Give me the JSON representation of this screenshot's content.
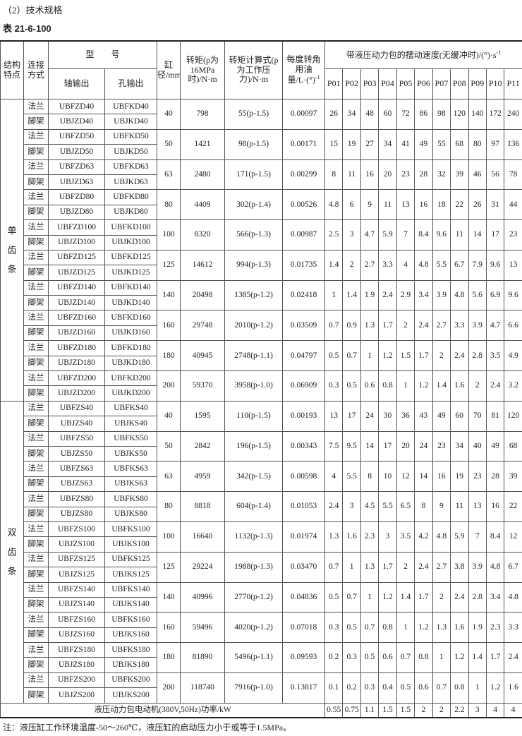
{
  "section_title": "（2）技术规格",
  "table_number": "表 21-6-100",
  "headers": {
    "structure": "结构特点",
    "connection": "连接方式",
    "model": "型　　号",
    "shaft_output": "轴输出",
    "hole_output": "孔输出",
    "bore": "缸径/mm",
    "torque": "转矩(p为16MPa时)/N·m",
    "torque_formula": "转矩计算式(p为工作压力)/N·m",
    "oil_per_degree": "每度转角用油量/L·(°)",
    "oil_unit_sup": "-1",
    "swing_speed": "带液压动力包的摆动速度(无缓冲时)/(°)·s",
    "swing_speed_sup": "-1",
    "packs": [
      "P01",
      "P02",
      "P03",
      "P04",
      "P05",
      "P06",
      "P07",
      "P08",
      "P09",
      "P10",
      "P11"
    ]
  },
  "connection_types": {
    "flange": "法兰",
    "foot": "脚架"
  },
  "sections": [
    {
      "label": "单齿条",
      "groups": [
        {
          "bore": "40",
          "torque": "798",
          "formula": "55(p-1.5)",
          "oil": "0.00097",
          "models": [
            [
              "UBFZD40",
              "UBFKD40"
            ],
            [
              "UBJZD40",
              "UBJKD40"
            ]
          ],
          "speeds": [
            "26",
            "34",
            "48",
            "60",
            "72",
            "86",
            "98",
            "120",
            "140",
            "172",
            "240"
          ]
        },
        {
          "bore": "50",
          "torque": "1421",
          "formula": "98(p-1.5)",
          "oil": "0.00171",
          "models": [
            [
              "UBFZD50",
              "UBFKD50"
            ],
            [
              "UBJZD50",
              "UBJKD50"
            ]
          ],
          "speeds": [
            "15",
            "19",
            "27",
            "34",
            "41",
            "49",
            "55",
            "68",
            "80",
            "97",
            "136"
          ]
        },
        {
          "bore": "63",
          "torque": "2480",
          "formula": "171(p-1.5)",
          "oil": "0.00299",
          "models": [
            [
              "UBFZD63",
              "UBFKD63"
            ],
            [
              "UBJZD63",
              "UBJKD63"
            ]
          ],
          "speeds": [
            "8",
            "11",
            "16",
            "20",
            "23",
            "28",
            "32",
            "39",
            "46",
            "56",
            "78"
          ]
        },
        {
          "bore": "80",
          "torque": "4409",
          "formula": "302(p-1.4)",
          "oil": "0.00526",
          "models": [
            [
              "UBFZD80",
              "UBFKD80"
            ],
            [
              "UBJZD80",
              "UBJKD80"
            ]
          ],
          "speeds": [
            "4.8",
            "6",
            "9",
            "11",
            "13",
            "16",
            "18",
            "22",
            "26",
            "31",
            "44"
          ]
        },
        {
          "bore": "100",
          "torque": "8320",
          "formula": "566(p-1.3)",
          "oil": "0.00987",
          "models": [
            [
              "UBFZD100",
              "UBFKD100"
            ],
            [
              "UBJZD100",
              "UBJKD100"
            ]
          ],
          "speeds": [
            "2.5",
            "3",
            "4.7",
            "5.9",
            "7",
            "8.4",
            "9.6",
            "11",
            "14",
            "17",
            "23"
          ]
        },
        {
          "bore": "125",
          "torque": "14612",
          "formula": "994(p-1.3)",
          "oil": "0.01735",
          "models": [
            [
              "UBFZD125",
              "UBFKD125"
            ],
            [
              "UBJZD125",
              "UBJKD125"
            ]
          ],
          "speeds": [
            "1.4",
            "2",
            "2.7",
            "3.3",
            "4",
            "4.8",
            "5.5",
            "6.7",
            "7.9",
            "9.6",
            "13"
          ]
        },
        {
          "bore": "140",
          "torque": "20498",
          "formula": "1385(p-1.2)",
          "oil": "0.02418",
          "models": [
            [
              "UBFZD140",
              "UBFKD140"
            ],
            [
              "UBJZD140",
              "UBJKD140"
            ]
          ],
          "speeds": [
            "1",
            "1.4",
            "1.9",
            "2.4",
            "2.9",
            "3.4",
            "3.9",
            "4.8",
            "5.6",
            "6.9",
            "9.6"
          ]
        },
        {
          "bore": "160",
          "torque": "29748",
          "formula": "2010(p-1.2)",
          "oil": "0.03509",
          "models": [
            [
              "UBFZD160",
              "UBFKD160"
            ],
            [
              "UBJZD160",
              "UBJKD160"
            ]
          ],
          "speeds": [
            "0.7",
            "0.9",
            "1.3",
            "1.7",
            "2",
            "2.4",
            "2.7",
            "3.3",
            "3.9",
            "4.7",
            "6.6"
          ]
        },
        {
          "bore": "180",
          "torque": "40945",
          "formula": "2748(p-1.1)",
          "oil": "0.04797",
          "models": [
            [
              "UBFZD180",
              "UBFKD180"
            ],
            [
              "UBJZD180",
              "UBJKD180"
            ]
          ],
          "speeds": [
            "0.5",
            "0.7",
            "1",
            "1.2",
            "1.5",
            "1.7",
            "2",
            "2.4",
            "2.8",
            "3.5",
            "4.9"
          ]
        },
        {
          "bore": "200",
          "torque": "59370",
          "formula": "3958(p-1.0)",
          "oil": "0.06909",
          "models": [
            [
              "UBFZD200",
              "UBFKD200"
            ],
            [
              "UBJZD200",
              "UBJKD200"
            ]
          ],
          "speeds": [
            "0.3",
            "0.5",
            "0.6",
            "0.8",
            "1",
            "1.2",
            "1.4",
            "1.6",
            "2",
            "2.4",
            "3.2"
          ]
        }
      ]
    },
    {
      "label": "双齿条",
      "groups": [
        {
          "bore": "40",
          "torque": "1595",
          "formula": "110(p-1.5)",
          "oil": "0.00193",
          "models": [
            [
              "UBFZS40",
              "UBFKS40"
            ],
            [
              "UBJZS40",
              "UBJKS40"
            ]
          ],
          "speeds": [
            "13",
            "17",
            "24",
            "30",
            "36",
            "43",
            "49",
            "60",
            "70",
            "81",
            "120"
          ]
        },
        {
          "bore": "50",
          "torque": "2842",
          "formula": "196(p-1.5)",
          "oil": "0.00343",
          "models": [
            [
              "UBFZS50",
              "UBFKS50"
            ],
            [
              "UBJZS50",
              "UBJKS50"
            ]
          ],
          "speeds": [
            "7.5",
            "9.5",
            "14",
            "17",
            "20",
            "24",
            "23",
            "34",
            "40",
            "49",
            "68"
          ]
        },
        {
          "bore": "63",
          "torque": "4959",
          "formula": "342(p-1.5)",
          "oil": "0.00598",
          "models": [
            [
              "UBFZS63",
              "UBFKS63"
            ],
            [
              "UBJZS63",
              "UBJKS63"
            ]
          ],
          "speeds": [
            "4",
            "5.5",
            "8",
            "10",
            "12",
            "14",
            "16",
            "19",
            "23",
            "28",
            "39"
          ]
        },
        {
          "bore": "80",
          "torque": "8818",
          "formula": "604(p-1.4)",
          "oil": "0.01053",
          "models": [
            [
              "UBFZS80",
              "UBFKS80"
            ],
            [
              "UBJZS80",
              "UBJKS80"
            ]
          ],
          "speeds": [
            "2.4",
            "3",
            "4.5",
            "5.5",
            "6.5",
            "8",
            "9",
            "11",
            "13",
            "16",
            "22"
          ]
        },
        {
          "bore": "100",
          "torque": "16640",
          "formula": "1132(p-1.3)",
          "oil": "0.01974",
          "models": [
            [
              "UBFZS100",
              "UBFKS100"
            ],
            [
              "UBJZS100",
              "UBJKS100"
            ]
          ],
          "speeds": [
            "1.3",
            "1.6",
            "2.3",
            "3",
            "3.5",
            "4.2",
            "4.8",
            "5.9",
            "7",
            "8.4",
            "12"
          ]
        },
        {
          "bore": "125",
          "torque": "29224",
          "formula": "1988(p-1.3)",
          "oil": "0.03470",
          "models": [
            [
              "UBFZS125",
              "UBFKS125"
            ],
            [
              "UBJZS125",
              "UBJKS125"
            ]
          ],
          "speeds": [
            "0.7",
            "1",
            "1.3",
            "1.7",
            "2",
            "2.4",
            "2.7",
            "3.8",
            "3.9",
            "4.8",
            "6.7"
          ]
        },
        {
          "bore": "140",
          "torque": "40996",
          "formula": "2770(p-1.2)",
          "oil": "0.04836",
          "models": [
            [
              "UBFZS140",
              "UBFKS140"
            ],
            [
              "UBJZS140",
              "UBJKS140"
            ]
          ],
          "speeds": [
            "0.5",
            "0.7",
            "1",
            "1.2",
            "1.4",
            "1.7",
            "2",
            "2.4",
            "2.8",
            "3.4",
            "4.8"
          ]
        },
        {
          "bore": "160",
          "torque": "59496",
          "formula": "4020(p-1.2)",
          "oil": "0.07018",
          "models": [
            [
              "UBFZS160",
              "UBFKS160"
            ],
            [
              "UBJZS160",
              "UBJKS160"
            ]
          ],
          "speeds": [
            "0.3",
            "0.5",
            "0.7",
            "0.8",
            "1",
            "1.2",
            "1.3",
            "1.6",
            "1.9",
            "2.3",
            "3.3"
          ]
        },
        {
          "bore": "180",
          "torque": "81890",
          "formula": "5496(p-1.1)",
          "oil": "0.09593",
          "models": [
            [
              "UBFZS180",
              "UBFKS180"
            ],
            [
              "UBJZS180",
              "UBJKS180"
            ]
          ],
          "speeds": [
            "0.2",
            "0.3",
            "0.5",
            "0.6",
            "0.7",
            "0.8",
            "1",
            "1.2",
            "1.4",
            "1.7",
            "2.4"
          ]
        },
        {
          "bore": "200",
          "torque": "118740",
          "formula": "7916(p-1.0)",
          "oil": "0.13817",
          "models": [
            [
              "UBFZS200",
              "UBFKS200"
            ],
            [
              "UBJZS200",
              "UBJKS200"
            ]
          ],
          "speeds": [
            "0.1",
            "0.2",
            "0.3",
            "0.4",
            "0.5",
            "0.6",
            "0.7",
            "0.8",
            "1",
            "1.2",
            "1.6"
          ]
        }
      ]
    }
  ],
  "power_row": {
    "label": "液压动力包电动机(380V,50Hz)功率/kW",
    "values": [
      "0.55",
      "0.75",
      "1.1",
      "1.5",
      "1.5",
      "2",
      "2",
      "2.2",
      "3",
      "4",
      "4"
    ]
  },
  "note": "注：液压缸工作环境温度-50～260℃，液压缸的启动压力小于或等于1.5MPa。"
}
